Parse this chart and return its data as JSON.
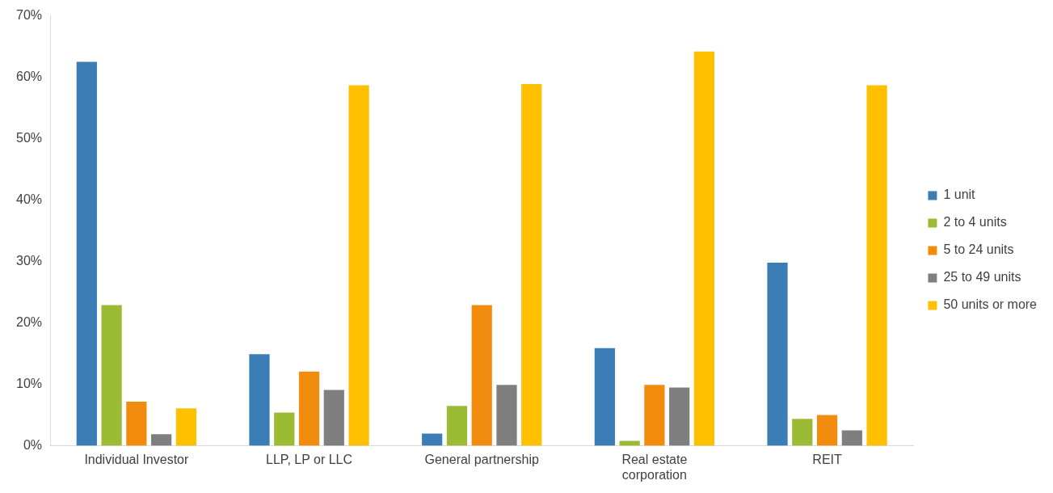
{
  "chart_data": {
    "type": "bar",
    "categories": [
      "Individual Investor",
      "LLP, LP or LLC",
      "General partnership",
      "Real estate corporation",
      "REIT"
    ],
    "series": [
      {
        "name": "1 unit",
        "color": "#3b7db5",
        "values": [
          62.5,
          14.9,
          2.0,
          15.9,
          29.8
        ]
      },
      {
        "name": "2 to 4 units",
        "color": "#9bbb34",
        "values": [
          22.9,
          5.4,
          6.5,
          0.8,
          4.4
        ]
      },
      {
        "name": "5 to 24 units",
        "color": "#f28c0f",
        "values": [
          7.2,
          12.1,
          22.9,
          9.9,
          5.0
        ]
      },
      {
        "name": "25 to 49 units",
        "color": "#7f7f7f",
        "values": [
          1.9,
          9.1,
          9.9,
          9.5,
          2.5
        ]
      },
      {
        "name": "50 units or more",
        "color": "#ffc000",
        "values": [
          6.1,
          58.7,
          58.9,
          64.2,
          58.7
        ]
      }
    ],
    "ylim": [
      0,
      70
    ],
    "yticks": [
      {
        "value": 0,
        "label": "0%"
      },
      {
        "value": 10,
        "label": "10%"
      },
      {
        "value": 20,
        "label": "20%"
      },
      {
        "value": 30,
        "label": "30%"
      },
      {
        "value": 40,
        "label": "40%"
      },
      {
        "value": 50,
        "label": "50%"
      },
      {
        "value": 60,
        "label": "60%"
      },
      {
        "value": 70,
        "label": "70%"
      }
    ],
    "grid": false,
    "legend": "right"
  }
}
